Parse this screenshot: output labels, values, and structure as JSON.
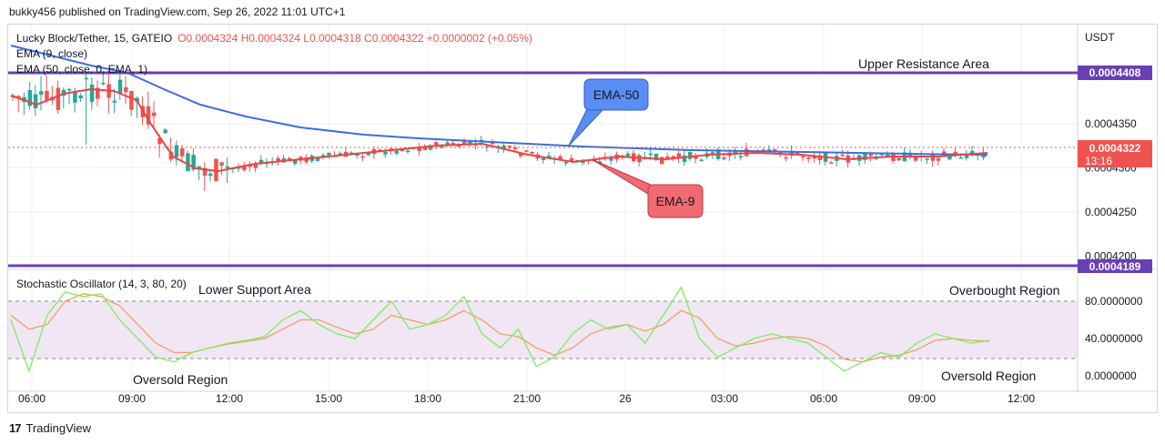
{
  "header": {
    "publisher": "bukky456 published on TradingView.com, Sep 26, 2022 11:01 UTC+1"
  },
  "legend": {
    "symbol": "Lucky Block/Tether, 15, GATEIO",
    "ohlc": "O0.0004324  H0.0004324  L0.0004318  C0.0004322  +0.0000002 (+0.05%)",
    "ema9": "EMA (9, close)",
    "ema50": "EMA (50, close, 0, EMA, 1)",
    "stoch": "Stochastic Oscillator (14, 3, 80, 20)"
  },
  "price_axis": {
    "currency": "USDT",
    "ticks": [
      "0.0004350",
      "0.0004300",
      "0.0004250",
      "0.0004200"
    ],
    "last_price_label": "0.0004322",
    "countdown": "13:16"
  },
  "stoch_axis": {
    "ticks": [
      "80.0000000",
      "40.0000000",
      "0.0000000"
    ]
  },
  "time_axis": {
    "ticks": [
      "06:00",
      "09:00",
      "12:00",
      "15:00",
      "18:00",
      "21:00",
      "26",
      "03:00",
      "06:00",
      "09:00",
      "12:00"
    ]
  },
  "annotations": {
    "upper_label": "Upper Resistance Area",
    "upper_price": "0.0004408",
    "lower_label": "Lower Support Area",
    "lower_price": "0.0004189",
    "ema50_callout": "EMA-50",
    "ema9_callout": "EMA-9",
    "overbought": "Overbought Region",
    "oversold_left": "Oversold Region",
    "oversold_right": "Oversold Region"
  },
  "colors": {
    "bull": "#26a69a",
    "bear": "#ef5350",
    "ema9": "#e84545",
    "ema50": "#3b6fe0",
    "level_line": "#6a3fb5",
    "stoch_k": "#7bed5f",
    "stoch_d": "#f0a060",
    "band": "#f1e6f4"
  },
  "footer": {
    "brand": "TradingView"
  },
  "chart_data": [
    {
      "type": "candlestick",
      "title": "Lucky Block/Tether, 15, GATEIO",
      "ylabel": "USDT",
      "ylim": [
        0.000419,
        0.000441
      ],
      "x": [
        "06:00",
        "09:00",
        "12:00",
        "15:00",
        "18:00",
        "21:00",
        "26",
        "03:00",
        "06:00",
        "09:00",
        "12:00"
      ],
      "series": [
        {
          "name": "EMA (9, close)",
          "approx_values": [
            0.0004385,
            0.000438,
            0.0004395,
            0.000434,
            0.00043,
            0.0004305,
            0.0004315,
            0.000432,
            0.0004318,
            0.0004322
          ]
        },
        {
          "name": "EMA (50, close, 0, EMA, 1)",
          "approx_values": [
            0.000444,
            0.000441,
            0.000438,
            0.000435,
            0.0004335,
            0.0004328,
            0.0004325,
            0.0004323,
            0.0004322,
            0.0004321
          ]
        }
      ],
      "levels": [
        {
          "label": "Upper Resistance Area",
          "value": 0.0004408
        },
        {
          "label": "Lower Support Area",
          "value": 0.0004189
        }
      ],
      "last_close": 0.0004322
    },
    {
      "type": "line",
      "title": "Stochastic Oscillator (14, 3, 80, 20)",
      "ylim": [
        0,
        100
      ],
      "bands": [
        20,
        80
      ],
      "series": [
        {
          "name": "%K",
          "values": [
            60,
            5,
            65,
            90,
            85,
            88,
            60,
            40,
            20,
            15,
            25,
            30,
            35,
            38,
            42,
            60,
            70,
            55,
            45,
            40,
            60,
            80,
            50,
            55,
            65,
            85,
            45,
            30,
            50,
            10,
            20,
            45,
            60,
            50,
            55,
            35,
            65,
            95,
            40,
            20,
            30,
            40,
            45,
            40,
            35,
            20,
            5,
            15,
            25,
            20,
            35,
            45,
            40,
            35,
            38
          ]
        },
        {
          "name": "%D",
          "values": [
            65,
            50,
            55,
            80,
            88,
            85,
            75,
            55,
            35,
            25,
            25,
            30,
            34,
            37,
            40,
            50,
            60,
            60,
            52,
            45,
            50,
            65,
            60,
            55,
            60,
            70,
            60,
            45,
            42,
            30,
            22,
            30,
            45,
            52,
            55,
            48,
            55,
            70,
            62,
            40,
            32,
            35,
            40,
            42,
            40,
            32,
            18,
            15,
            20,
            22,
            28,
            38,
            40,
            38,
            37
          ]
        }
      ]
    }
  ]
}
